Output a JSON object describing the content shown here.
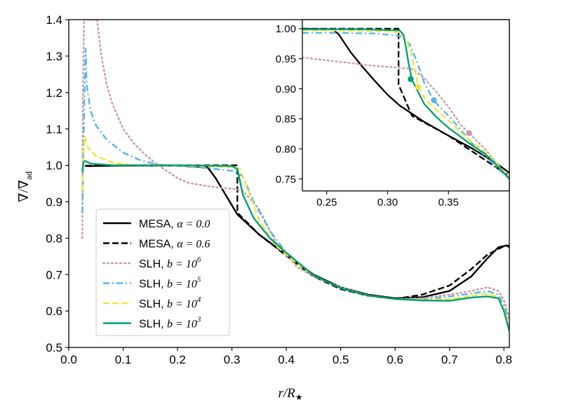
{
  "chart_data": [
    {
      "type": "line",
      "role": "main",
      "xlabel": "r/R★",
      "ylabel": "∇/∇ad",
      "xlim": [
        0.0,
        0.81
      ],
      "ylim": [
        0.5,
        1.4
      ],
      "xticks": [
        0.0,
        0.1,
        0.2,
        0.3,
        0.4,
        0.5,
        0.6,
        0.7,
        0.8
      ],
      "xtick_labels": [
        "0.0",
        "0.1",
        "0.2",
        "0.3",
        "0.4",
        "0.5",
        "0.6",
        "0.7",
        "0.8"
      ],
      "yticks": [
        0.5,
        0.6,
        0.7,
        0.8,
        0.9,
        1.0,
        1.1,
        1.2,
        1.3,
        1.4
      ],
      "ytick_labels": [
        "0.5",
        "0.6",
        "0.7",
        "0.8",
        "0.9",
        "1.0",
        "1.1",
        "1.2",
        "1.3",
        "1.4"
      ],
      "legend_position": "lower-left",
      "series": [
        {
          "name": "MESA, α = 0.0",
          "label_main": "MESA, ",
          "label_math": "α = 0.0",
          "color": "#000000",
          "style": "solid",
          "points": [
            [
              0.03,
              0.998
            ],
            [
              0.1,
              0.999
            ],
            [
              0.2,
              0.999
            ],
            [
              0.255,
              0.995
            ],
            [
              0.27,
              0.965
            ],
            [
              0.29,
              0.915
            ],
            [
              0.31,
              0.865
            ],
            [
              0.35,
              0.81
            ],
            [
              0.4,
              0.755
            ],
            [
              0.45,
              0.7
            ],
            [
              0.5,
              0.665
            ],
            [
              0.55,
              0.645
            ],
            [
              0.6,
              0.635
            ],
            [
              0.65,
              0.638
            ],
            [
              0.7,
              0.655
            ],
            [
              0.74,
              0.695
            ],
            [
              0.77,
              0.745
            ],
            [
              0.79,
              0.775
            ],
            [
              0.805,
              0.78
            ],
            [
              0.81,
              0.775
            ]
          ]
        },
        {
          "name": "MESA, α = 0.6",
          "label_main": "MESA, ",
          "label_math": "α = 0.6",
          "color": "#000000",
          "style": "dashed",
          "points": [
            [
              0.03,
              0.999
            ],
            [
              0.1,
              1.0
            ],
            [
              0.2,
              1.0
            ],
            [
              0.31,
              1.0
            ],
            [
              0.31,
              0.87
            ],
            [
              0.35,
              0.81
            ],
            [
              0.4,
              0.752
            ],
            [
              0.45,
              0.695
            ],
            [
              0.5,
              0.66
            ],
            [
              0.55,
              0.642
            ],
            [
              0.6,
              0.633
            ],
            [
              0.65,
              0.645
            ],
            [
              0.7,
              0.67
            ],
            [
              0.74,
              0.715
            ],
            [
              0.77,
              0.755
            ],
            [
              0.8,
              0.778
            ],
            [
              0.81,
              0.78
            ]
          ]
        },
        {
          "name": "SLH, b = 10^6",
          "label_main": "SLH, ",
          "label_math": "b = 10",
          "label_sup": "6",
          "color": "#cc99aa",
          "style": "dotted",
          "points": [
            [
              0.025,
              0.8
            ],
            [
              0.026,
              1.2
            ],
            [
              0.028,
              1.4
            ],
            [
              0.052,
              1.4
            ],
            [
              0.06,
              1.3
            ],
            [
              0.07,
              1.22
            ],
            [
              0.08,
              1.17
            ],
            [
              0.1,
              1.1
            ],
            [
              0.12,
              1.06
            ],
            [
              0.14,
              1.03
            ],
            [
              0.16,
              1.005
            ],
            [
              0.18,
              0.985
            ],
            [
              0.2,
              0.965
            ],
            [
              0.22,
              0.952
            ],
            [
              0.25,
              0.944
            ],
            [
              0.28,
              0.938
            ],
            [
              0.3,
              0.936
            ],
            [
              0.32,
              0.93
            ],
            [
              0.35,
              0.88
            ],
            [
              0.38,
              0.79
            ],
            [
              0.42,
              0.72
            ],
            [
              0.45,
              0.695
            ],
            [
              0.5,
              0.665
            ],
            [
              0.55,
              0.643
            ],
            [
              0.6,
              0.633
            ],
            [
              0.65,
              0.635
            ],
            [
              0.7,
              0.645
            ],
            [
              0.74,
              0.655
            ],
            [
              0.77,
              0.665
            ],
            [
              0.79,
              0.655
            ],
            [
              0.8,
              0.63
            ],
            [
              0.81,
              0.58
            ]
          ]
        },
        {
          "name": "SLH, b = 10^5",
          "label_main": "SLH, ",
          "label_math": "b = 10",
          "label_sup": "5",
          "color": "#56b4e9",
          "style": "dashdot",
          "points": [
            [
              0.025,
              0.87
            ],
            [
              0.027,
              1.05
            ],
            [
              0.029,
              1.2
            ],
            [
              0.031,
              1.32
            ],
            [
              0.033,
              1.22
            ],
            [
              0.04,
              1.15
            ],
            [
              0.05,
              1.11
            ],
            [
              0.07,
              1.07
            ],
            [
              0.1,
              1.035
            ],
            [
              0.13,
              1.015
            ],
            [
              0.16,
              1.003
            ],
            [
              0.2,
              0.998
            ],
            [
              0.25,
              0.993
            ],
            [
              0.3,
              0.985
            ],
            [
              0.32,
              0.97
            ],
            [
              0.34,
              0.9
            ],
            [
              0.37,
              0.82
            ],
            [
              0.4,
              0.76
            ],
            [
              0.45,
              0.698
            ],
            [
              0.5,
              0.662
            ],
            [
              0.55,
              0.642
            ],
            [
              0.6,
              0.633
            ],
            [
              0.65,
              0.632
            ],
            [
              0.7,
              0.64
            ],
            [
              0.74,
              0.648
            ],
            [
              0.77,
              0.655
            ],
            [
              0.79,
              0.645
            ],
            [
              0.8,
              0.615
            ],
            [
              0.81,
              0.57
            ]
          ]
        },
        {
          "name": "SLH, b = 10^4",
          "label_main": "SLH, ",
          "label_math": "b = 10",
          "label_sup": "4",
          "color": "#f0e442",
          "style": "dashed",
          "points": [
            [
              0.025,
              0.93
            ],
            [
              0.027,
              1.02
            ],
            [
              0.029,
              1.08
            ],
            [
              0.035,
              1.05
            ],
            [
              0.05,
              1.025
            ],
            [
              0.08,
              1.008
            ],
            [
              0.12,
              1.0
            ],
            [
              0.2,
              0.999
            ],
            [
              0.3,
              0.995
            ],
            [
              0.315,
              0.99
            ],
            [
              0.33,
              0.93
            ],
            [
              0.35,
              0.85
            ],
            [
              0.38,
              0.78
            ],
            [
              0.42,
              0.73
            ],
            [
              0.45,
              0.698
            ],
            [
              0.5,
              0.663
            ],
            [
              0.55,
              0.643
            ],
            [
              0.6,
              0.633
            ],
            [
              0.65,
              0.631
            ],
            [
              0.7,
              0.633
            ],
            [
              0.74,
              0.642
            ],
            [
              0.77,
              0.648
            ],
            [
              0.79,
              0.638
            ],
            [
              0.8,
              0.605
            ],
            [
              0.81,
              0.56
            ]
          ]
        },
        {
          "name": "SLH, b = 10^3",
          "label_main": "SLH, ",
          "label_math": "b = 10",
          "label_sup": "3",
          "color": "#009e73",
          "style": "solid",
          "points": [
            [
              0.025,
              0.98
            ],
            [
              0.027,
              1.008
            ],
            [
              0.03,
              1.012
            ],
            [
              0.04,
              1.005
            ],
            [
              0.08,
              1.0
            ],
            [
              0.2,
              1.0
            ],
            [
              0.3,
              0.998
            ],
            [
              0.31,
              0.99
            ],
            [
              0.32,
              0.92
            ],
            [
              0.34,
              0.855
            ],
            [
              0.37,
              0.8
            ],
            [
              0.4,
              0.76
            ],
            [
              0.45,
              0.698
            ],
            [
              0.5,
              0.663
            ],
            [
              0.55,
              0.643
            ],
            [
              0.6,
              0.633
            ],
            [
              0.65,
              0.629
            ],
            [
              0.7,
              0.628
            ],
            [
              0.74,
              0.637
            ],
            [
              0.77,
              0.64
            ],
            [
              0.79,
              0.635
            ],
            [
              0.8,
              0.6
            ],
            [
              0.81,
              0.545
            ]
          ]
        }
      ]
    },
    {
      "type": "line",
      "role": "inset",
      "xlim": [
        0.23,
        0.4
      ],
      "ylim": [
        0.73,
        1.015
      ],
      "xticks": [
        0.25,
        0.3,
        0.35
      ],
      "xtick_labels": [
        "0.25",
        "0.30",
        "0.35"
      ],
      "yticks": [
        0.75,
        0.8,
        0.85,
        0.9,
        0.95,
        1.0
      ],
      "ytick_labels": [
        "0.75",
        "0.80",
        "0.85",
        "0.90",
        "0.95",
        "1.00"
      ],
      "series": [
        {
          "name": "MESA, α = 0.0",
          "color": "#000000",
          "style": "solid",
          "points": [
            [
              0.23,
              1.0
            ],
            [
              0.255,
              0.999
            ],
            [
              0.26,
              0.99
            ],
            [
              0.27,
              0.96
            ],
            [
              0.28,
              0.935
            ],
            [
              0.29,
              0.912
            ],
            [
              0.3,
              0.89
            ],
            [
              0.31,
              0.872
            ],
            [
              0.33,
              0.845
            ],
            [
              0.35,
              0.822
            ],
            [
              0.37,
              0.8
            ],
            [
              0.39,
              0.775
            ],
            [
              0.4,
              0.76
            ]
          ]
        },
        {
          "name": "MESA, α = 0.6",
          "color": "#000000",
          "style": "dashed",
          "points": [
            [
              0.23,
              1.0
            ],
            [
              0.309,
              1.0
            ],
            [
              0.309,
              0.907
            ],
            [
              0.32,
              0.855
            ],
            [
              0.35,
              0.822
            ],
            [
              0.37,
              0.795
            ],
            [
              0.39,
              0.768
            ],
            [
              0.4,
              0.755
            ]
          ]
        },
        {
          "name": "SLH, b = 10^6",
          "color": "#cc99aa",
          "style": "dotted",
          "points": [
            [
              0.23,
              0.952
            ],
            [
              0.26,
              0.945
            ],
            [
              0.29,
              0.938
            ],
            [
              0.31,
              0.935
            ],
            [
              0.32,
              0.933
            ],
            [
              0.33,
              0.918
            ],
            [
              0.34,
              0.895
            ],
            [
              0.35,
              0.87
            ],
            [
              0.36,
              0.84
            ],
            [
              0.37,
              0.82
            ],
            [
              0.38,
              0.8
            ],
            [
              0.39,
              0.775
            ],
            [
              0.4,
              0.75
            ]
          ]
        },
        {
          "name": "SLH, b = 10^5",
          "color": "#56b4e9",
          "style": "dashdot",
          "points": [
            [
              0.23,
              0.993
            ],
            [
              0.26,
              0.993
            ],
            [
              0.29,
              0.992
            ],
            [
              0.31,
              0.988
            ],
            [
              0.318,
              0.975
            ],
            [
              0.325,
              0.94
            ],
            [
              0.33,
              0.91
            ],
            [
              0.338,
              0.88
            ],
            [
              0.35,
              0.855
            ],
            [
              0.36,
              0.832
            ],
            [
              0.37,
              0.808
            ],
            [
              0.38,
              0.788
            ],
            [
              0.39,
              0.768
            ],
            [
              0.4,
              0.75
            ]
          ]
        },
        {
          "name": "SLH, b = 10^4",
          "color": "#f0e442",
          "style": "dashed",
          "points": [
            [
              0.23,
              0.997
            ],
            [
              0.26,
              0.997
            ],
            [
              0.29,
              0.996
            ],
            [
              0.31,
              0.994
            ],
            [
              0.316,
              0.98
            ],
            [
              0.32,
              0.955
            ],
            [
              0.325,
              0.905
            ],
            [
              0.33,
              0.885
            ],
            [
              0.34,
              0.865
            ],
            [
              0.35,
              0.847
            ],
            [
              0.36,
              0.828
            ],
            [
              0.37,
              0.81
            ],
            [
              0.38,
              0.795
            ],
            [
              0.39,
              0.775
            ],
            [
              0.4,
              0.752
            ]
          ]
        },
        {
          "name": "SLH, b = 10^3",
          "color": "#009e73",
          "style": "solid",
          "points": [
            [
              0.23,
              0.999
            ],
            [
              0.28,
              0.999
            ],
            [
              0.31,
              0.997
            ],
            [
              0.313,
              0.99
            ],
            [
              0.315,
              0.97
            ],
            [
              0.317,
              0.945
            ],
            [
              0.32,
              0.915
            ],
            [
              0.325,
              0.895
            ],
            [
              0.33,
              0.875
            ],
            [
              0.34,
              0.853
            ],
            [
              0.35,
              0.835
            ],
            [
              0.36,
              0.82
            ],
            [
              0.37,
              0.805
            ],
            [
              0.38,
              0.792
            ],
            [
              0.39,
              0.772
            ],
            [
              0.4,
              0.75
            ]
          ]
        }
      ],
      "markers": [
        {
          "series": "SLH, b = 10^6",
          "color": "#cc99aa",
          "x": 0.367,
          "y": 0.826
        },
        {
          "series": "SLH, b = 10^5",
          "color": "#56b4e9",
          "x": 0.338,
          "y": 0.881
        },
        {
          "series": "SLH, b = 10^4",
          "color": "#f0e442",
          "x": 0.325,
          "y": 0.903
        },
        {
          "series": "SLH, b = 10^3",
          "color": "#009e73",
          "x": 0.319,
          "y": 0.916
        }
      ]
    }
  ]
}
